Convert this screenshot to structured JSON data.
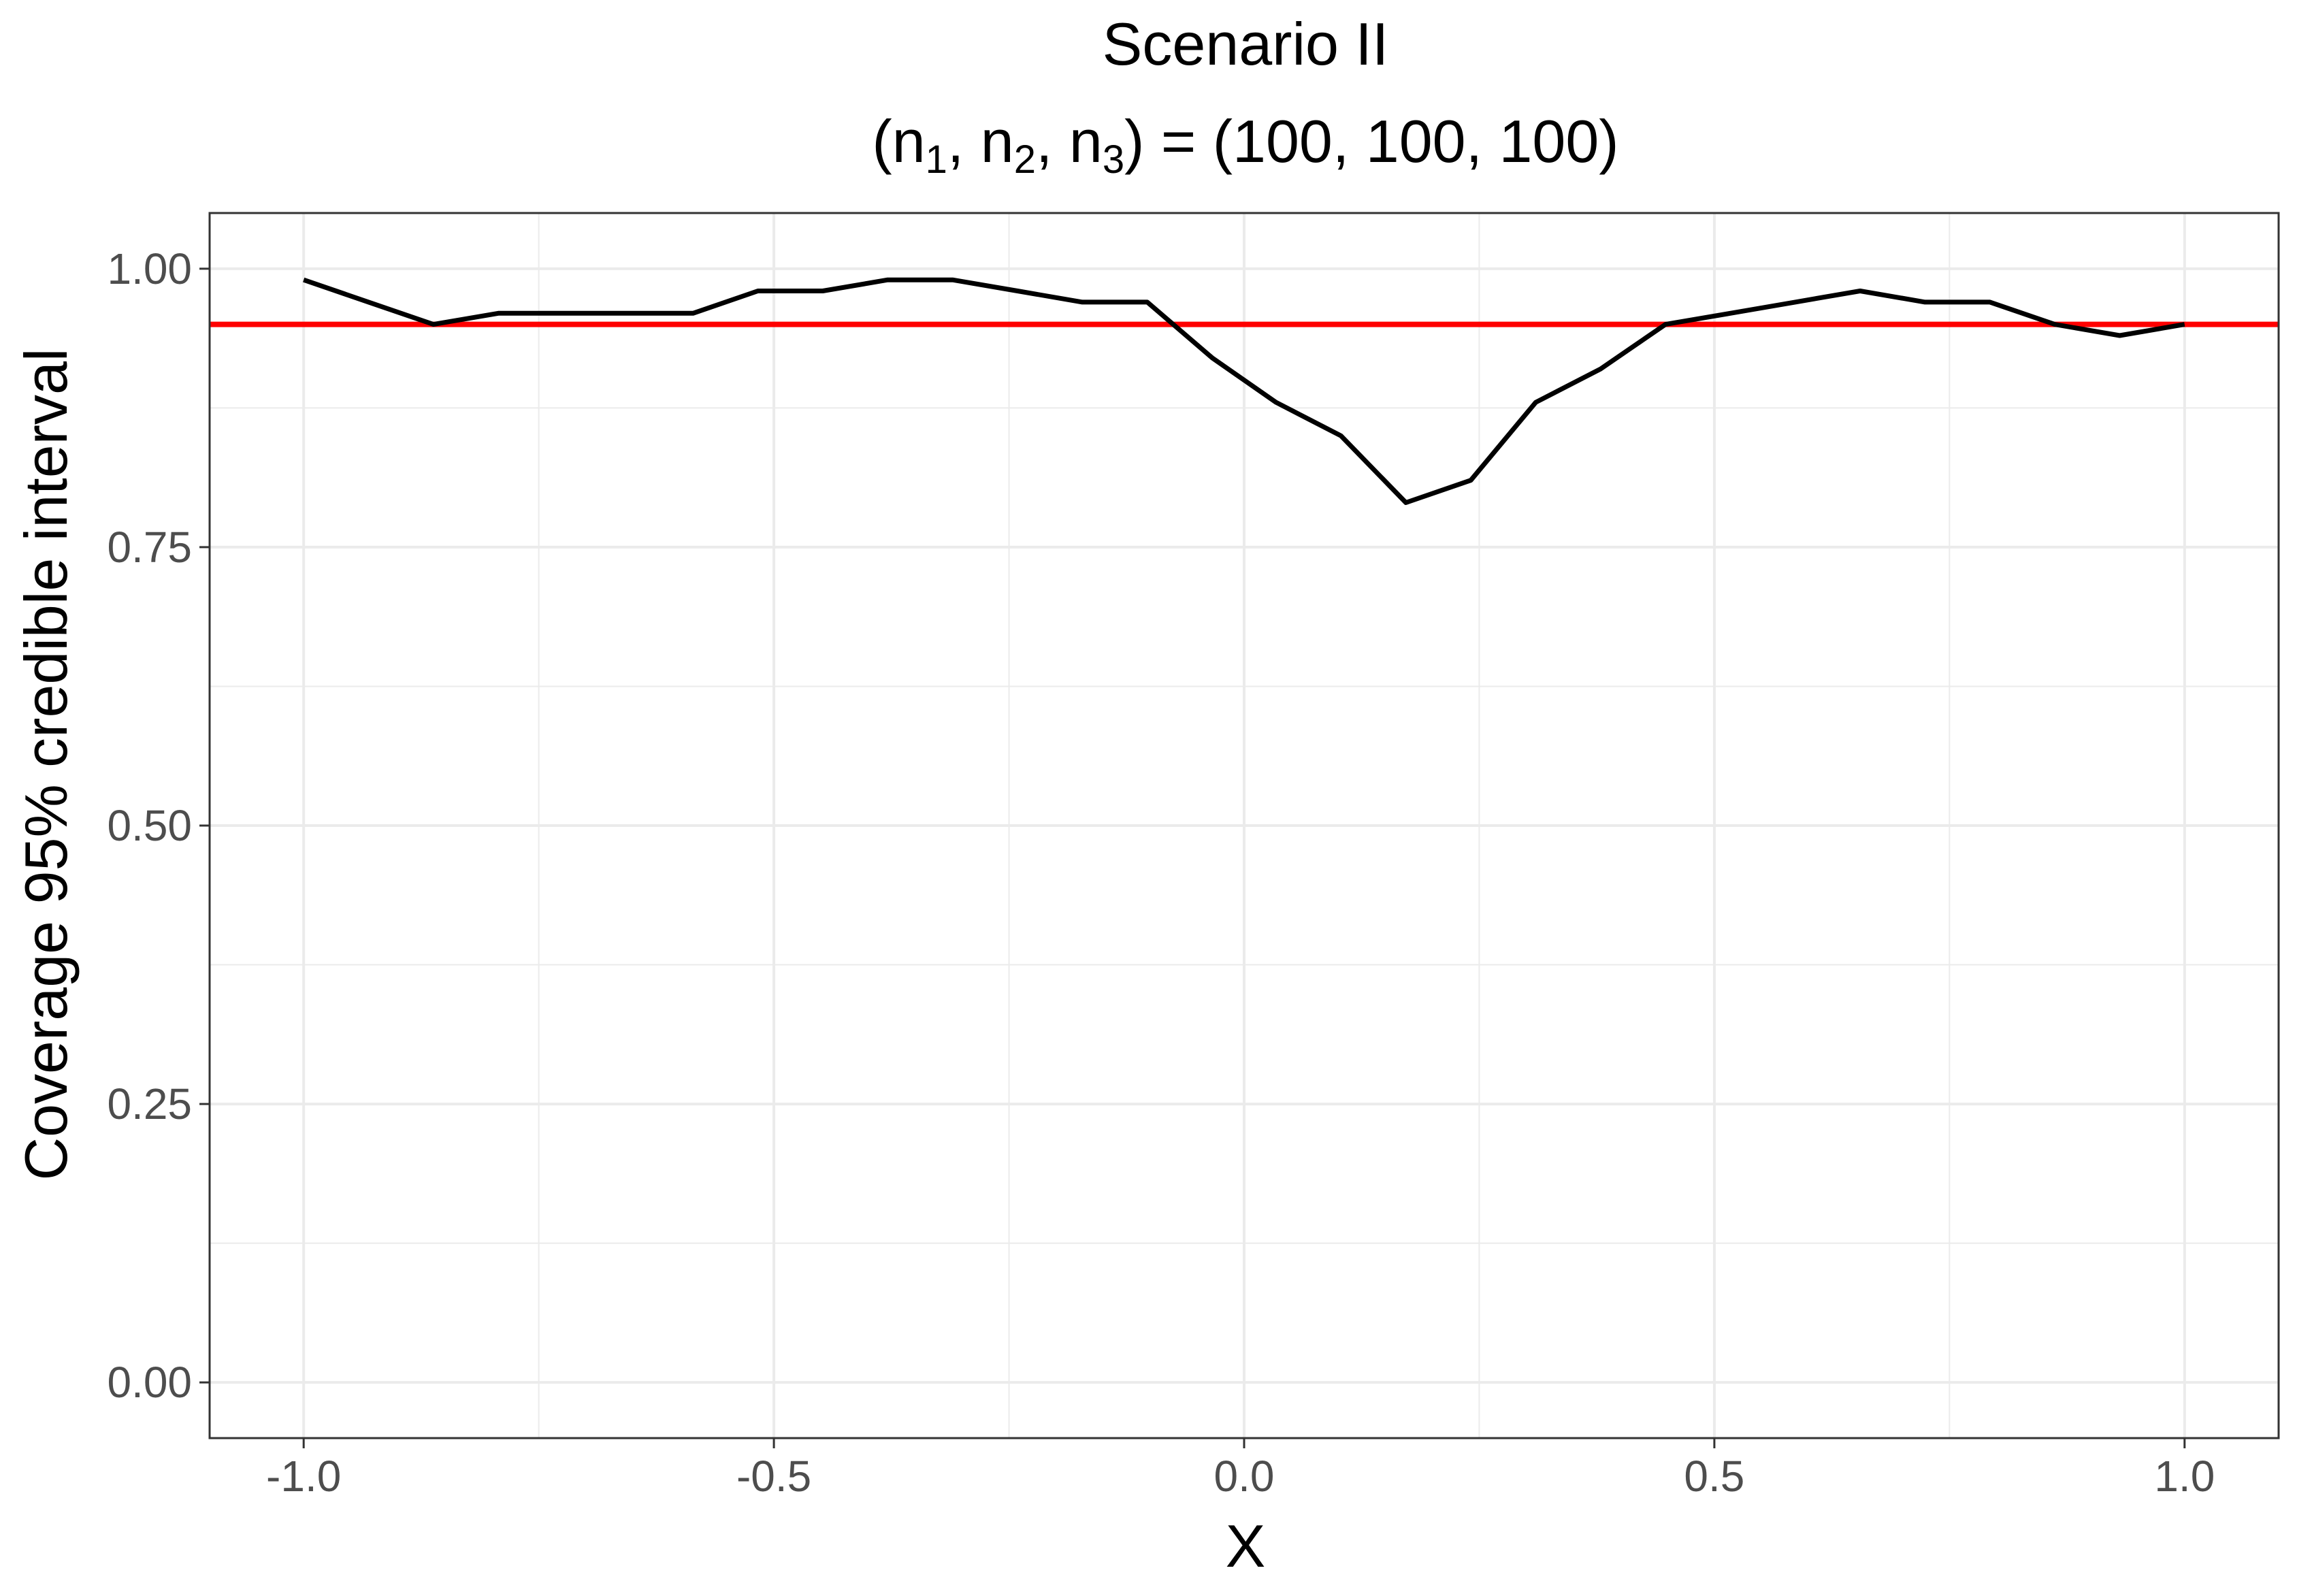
{
  "chart_data": {
    "type": "line",
    "title": "Scenario II",
    "subtitle": {
      "prefix": "(n",
      "sub1": "1",
      "mid1": ", n",
      "sub2": "2",
      "mid2": ", n",
      "sub3": "3",
      "suffix": ") = (100, 100, 100)"
    },
    "xlabel": "X",
    "ylabel": "Coverage 95% credible interval",
    "xlim": [
      -1.1,
      1.1
    ],
    "ylim": [
      -0.05,
      1.05
    ],
    "x_ticks": [
      {
        "value": -1.0,
        "label": "-1.0"
      },
      {
        "value": -0.5,
        "label": "-0.5"
      },
      {
        "value": 0.0,
        "label": "0.0"
      },
      {
        "value": 0.5,
        "label": "0.5"
      },
      {
        "value": 1.0,
        "label": "1.0"
      }
    ],
    "y_ticks": [
      {
        "value": 0.0,
        "label": "0.00"
      },
      {
        "value": 0.25,
        "label": "0.25"
      },
      {
        "value": 0.5,
        "label": "0.50"
      },
      {
        "value": 0.75,
        "label": "0.75"
      },
      {
        "value": 1.0,
        "label": "1.00"
      }
    ],
    "grid": true,
    "series": [
      {
        "color": "#000000",
        "x": [
          -1.0,
          -0.931,
          -0.862,
          -0.793,
          -0.724,
          -0.655,
          -0.586,
          -0.517,
          -0.448,
          -0.379,
          -0.31,
          -0.241,
          -0.172,
          -0.103,
          -0.034,
          0.034,
          0.103,
          0.172,
          0.241,
          0.31,
          0.379,
          0.448,
          0.517,
          0.586,
          0.655,
          0.724,
          0.793,
          0.862,
          0.931,
          1.0
        ],
        "y": [
          0.99,
          0.97,
          0.95,
          0.96,
          0.96,
          0.96,
          0.96,
          0.98,
          0.98,
          0.99,
          0.99,
          0.98,
          0.97,
          0.97,
          0.92,
          0.88,
          0.85,
          0.79,
          0.81,
          0.88,
          0.91,
          0.95,
          0.96,
          0.97,
          0.98,
          0.97,
          0.97,
          0.95,
          0.94,
          0.95
        ]
      }
    ],
    "reference_line": {
      "y": 0.95,
      "color": "#ff0000"
    }
  }
}
